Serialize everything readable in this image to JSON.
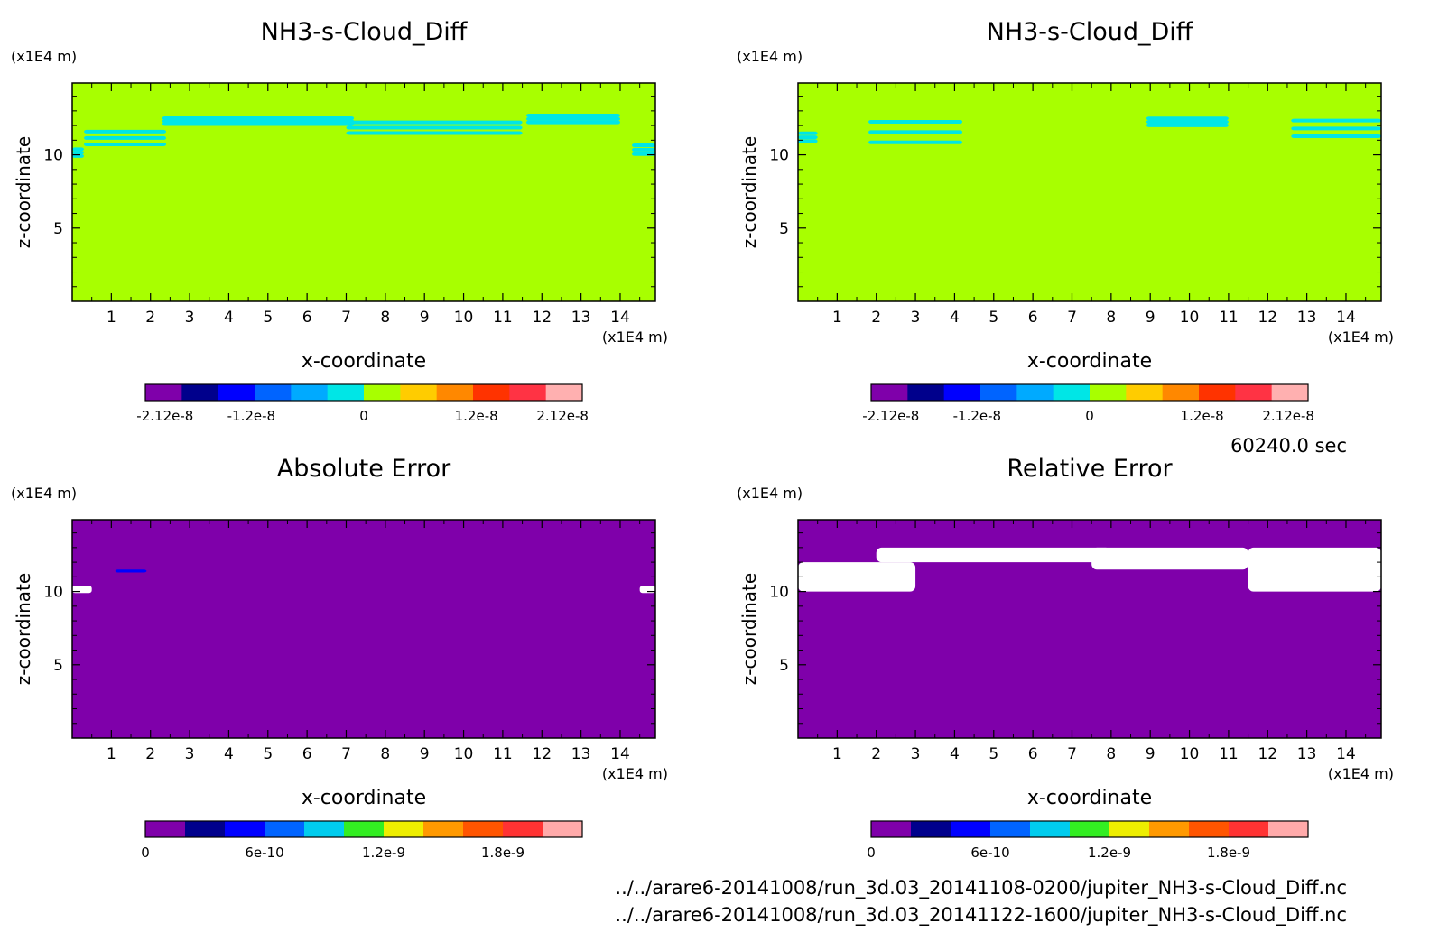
{
  "timestamp": "60240.0 sec",
  "files": [
    "../../arare6-20141008/run_3d.03_20141108-0200/jupiter_NH3-s-Cloud_Diff.nc",
    "../../arare6-20141008/run_3d.03_20141122-1600/jupiter_NH3-s-Cloud_Diff.nc"
  ],
  "colors": {
    "plot_green": "#a8ff00",
    "plot_cyan": "#00e0e8",
    "plot_purple": "#7f00aa",
    "white": "#ffffff"
  },
  "chart_data": [
    {
      "type": "heatmap",
      "title": "NH3-s-Cloud_Diff",
      "xlabel": "x-coordinate",
      "ylabel": "z-coordinate",
      "x_unit": "(x1E4 m)",
      "y_unit": "(x1E4 m)",
      "xlim": [
        0,
        14.9
      ],
      "ylim": [
        0,
        14.9
      ],
      "x_ticks": [
        1,
        2,
        3,
        4,
        5,
        6,
        7,
        8,
        9,
        10,
        11,
        12,
        13,
        14
      ],
      "y_ticks": [
        5,
        10
      ],
      "colorbar": {
        "colors": [
          "#7f00aa",
          "#00008c",
          "#0000ff",
          "#0064ff",
          "#00aaff",
          "#00e6e6",
          "#a8ff00",
          "#ffcc00",
          "#ff8800",
          "#ff3300",
          "#ff3344",
          "#ffb0b0"
        ],
        "labels": [
          {
            "value": -2.12e-08,
            "text": "-2.12e-8"
          },
          {
            "value": -1.2e-08,
            "text": "-1.2e-8"
          },
          {
            "value": 0,
            "text": "0"
          },
          {
            "value": 1.2e-08,
            "text": "1.2e-8"
          },
          {
            "value": 2.12e-08,
            "text": "2.12e-8"
          }
        ],
        "vmin": -2.33e-08,
        "vmax": 2.33e-08
      },
      "background_value": 0,
      "features": [
        {
          "x": [
            0.3,
            2.4
          ],
          "z": [
            10.5,
            11.8
          ],
          "value": -1e-09
        },
        {
          "x": [
            2.3,
            7.2
          ],
          "z": [
            12.0,
            12.6
          ],
          "value": -1e-09
        },
        {
          "x": [
            7.0,
            11.5
          ],
          "z": [
            11.3,
            12.4
          ],
          "value": -1e-09
        },
        {
          "x": [
            11.6,
            14.0
          ],
          "z": [
            12.1,
            12.8
          ],
          "value": -1e-09
        },
        {
          "x": [
            0.0,
            0.3
          ],
          "z": [
            9.8,
            10.5
          ],
          "value": -1e-09
        },
        {
          "x": [
            14.3,
            14.9
          ],
          "z": [
            9.9,
            10.8
          ],
          "value": -1e-09
        }
      ]
    },
    {
      "type": "heatmap",
      "title": "NH3-s-Cloud_Diff",
      "xlabel": "x-coordinate",
      "ylabel": "z-coordinate",
      "x_unit": "(x1E4 m)",
      "y_unit": "(x1E4 m)",
      "xlim": [
        0,
        14.9
      ],
      "ylim": [
        0,
        14.9
      ],
      "x_ticks": [
        1,
        2,
        3,
        4,
        5,
        6,
        7,
        8,
        9,
        10,
        11,
        12,
        13,
        14
      ],
      "y_ticks": [
        5,
        10
      ],
      "colorbar": {
        "colors": [
          "#7f00aa",
          "#00008c",
          "#0000ff",
          "#0064ff",
          "#00aaff",
          "#00e6e6",
          "#a8ff00",
          "#ffcc00",
          "#ff8800",
          "#ff3300",
          "#ff3344",
          "#ffb0b0"
        ],
        "labels": [
          {
            "value": -2.12e-08,
            "text": "-2.12e-8"
          },
          {
            "value": -1.2e-08,
            "text": "-1.2e-8"
          },
          {
            "value": 0,
            "text": "0"
          },
          {
            "value": 1.2e-08,
            "text": "1.2e-8"
          },
          {
            "value": 2.12e-08,
            "text": "2.12e-8"
          }
        ],
        "vmin": -2.33e-08,
        "vmax": 2.33e-08
      },
      "background_value": 0,
      "features": [
        {
          "x": [
            0.0,
            0.5
          ],
          "z": [
            10.8,
            11.6
          ],
          "value": -1e-09
        },
        {
          "x": [
            1.8,
            4.2
          ],
          "z": [
            10.5,
            12.6
          ],
          "value": -1e-09
        },
        {
          "x": [
            8.9,
            11.0
          ],
          "z": [
            11.9,
            12.6
          ],
          "value": -1e-09
        },
        {
          "x": [
            12.6,
            14.9
          ],
          "z": [
            11.0,
            12.6
          ],
          "value": -1e-09
        }
      ]
    },
    {
      "type": "heatmap",
      "title": "Absolute Error",
      "xlabel": "x-coordinate",
      "ylabel": "z-coordinate",
      "x_unit": "(x1E4 m)",
      "y_unit": "(x1E4 m)",
      "xlim": [
        0,
        14.9
      ],
      "ylim": [
        0,
        14.9
      ],
      "x_ticks": [
        1,
        2,
        3,
        4,
        5,
        6,
        7,
        8,
        9,
        10,
        11,
        12,
        13,
        14
      ],
      "y_ticks": [
        5,
        10
      ],
      "colorbar": {
        "colors": [
          "#7f00aa",
          "#00008c",
          "#0000ff",
          "#0064ff",
          "#00ccee",
          "#33ee22",
          "#eeee00",
          "#ff9900",
          "#ff5500",
          "#ff3333",
          "#ffaaaa"
        ],
        "labels": [
          {
            "value": 0,
            "text": "0"
          },
          {
            "value": 6e-10,
            "text": "6e-10"
          },
          {
            "value": 1.2e-09,
            "text": "1.2e-9"
          },
          {
            "value": 1.8e-09,
            "text": "1.8e-9"
          }
        ],
        "vmin": 0,
        "vmax": 2.2e-09
      },
      "background_value": 0,
      "features": [
        {
          "x": [
            1.1,
            1.9
          ],
          "z": [
            11.3,
            11.5
          ],
          "value": 4e-10
        },
        {
          "x": [
            0.0,
            0.5
          ],
          "z": [
            9.9,
            10.4
          ],
          "value": 2.5e-09
        },
        {
          "x": [
            14.5,
            14.9
          ],
          "z": [
            9.9,
            10.4
          ],
          "value": 2.5e-09
        }
      ]
    },
    {
      "type": "heatmap",
      "title": "Relative Error",
      "xlabel": "x-coordinate",
      "ylabel": "z-coordinate",
      "x_unit": "(x1E4 m)",
      "y_unit": "(x1E4 m)",
      "xlim": [
        0,
        14.9
      ],
      "ylim": [
        0,
        14.9
      ],
      "x_ticks": [
        1,
        2,
        3,
        4,
        5,
        6,
        7,
        8,
        9,
        10,
        11,
        12,
        13,
        14
      ],
      "y_ticks": [
        5,
        10
      ],
      "colorbar": {
        "colors": [
          "#7f00aa",
          "#00008c",
          "#0000ff",
          "#0064ff",
          "#00ccee",
          "#33ee22",
          "#eeee00",
          "#ff9900",
          "#ff5500",
          "#ff3333",
          "#ffaaaa"
        ],
        "labels": [
          {
            "value": 0,
            "text": "0"
          },
          {
            "value": 6e-10,
            "text": "6e-10"
          },
          {
            "value": 1.2e-09,
            "text": "1.2e-9"
          },
          {
            "value": 1.8e-09,
            "text": "1.8e-9"
          }
        ],
        "vmin": 0,
        "vmax": 2.2e-09
      },
      "background_value": 0,
      "features": [
        {
          "x": [
            0.0,
            3.0
          ],
          "z": [
            10.0,
            12.0
          ],
          "value": "undefined"
        },
        {
          "x": [
            2.0,
            8.0
          ],
          "z": [
            12.0,
            13.0
          ],
          "value": "undefined"
        },
        {
          "x": [
            7.5,
            11.5
          ],
          "z": [
            11.5,
            13.0
          ],
          "value": "undefined"
        },
        {
          "x": [
            11.5,
            14.9
          ],
          "z": [
            10.0,
            13.0
          ],
          "value": "undefined"
        }
      ]
    }
  ]
}
